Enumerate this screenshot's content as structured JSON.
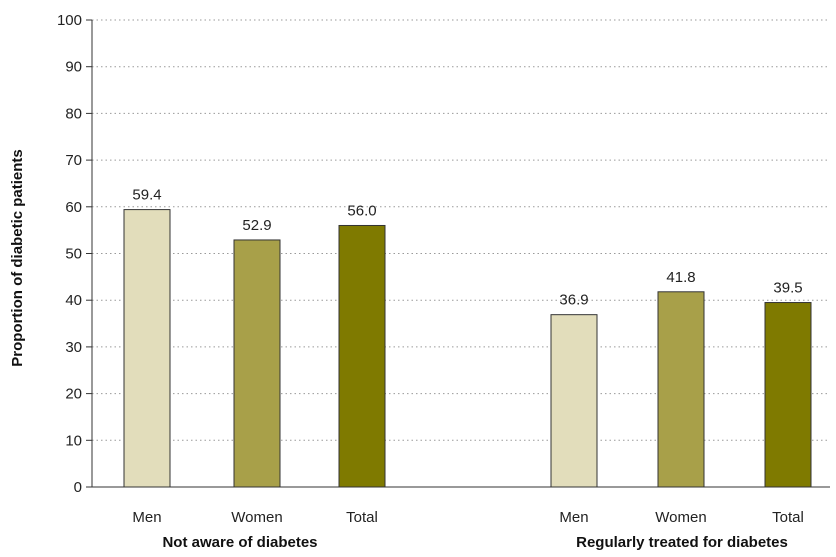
{
  "chart_data": {
    "type": "bar",
    "ylabel": "Proportion of diabetic patients",
    "ylim": [
      0,
      100
    ],
    "yticks": [
      0,
      10,
      20,
      30,
      40,
      50,
      60,
      70,
      80,
      90,
      100
    ],
    "grid": true,
    "groups": [
      {
        "label": "Not aware of diabetes",
        "bars": [
          {
            "category": "Men",
            "value": 59.4,
            "value_label": "59.4"
          },
          {
            "category": "Women",
            "value": 52.9,
            "value_label": "52.9"
          },
          {
            "category": "Total",
            "value": 56.0,
            "value_label": "56.0"
          }
        ]
      },
      {
        "label": "Regularly treated for diabetes",
        "bars": [
          {
            "category": "Men",
            "value": 36.9,
            "value_label": "36.9"
          },
          {
            "category": "Women",
            "value": 41.8,
            "value_label": "41.8"
          },
          {
            "category": "Total",
            "value": 39.5,
            "value_label": "39.5"
          }
        ]
      }
    ],
    "colors": {
      "Men": "#e2ddbb",
      "Women": "#a8a049",
      "Total": "#7f7a00"
    }
  }
}
